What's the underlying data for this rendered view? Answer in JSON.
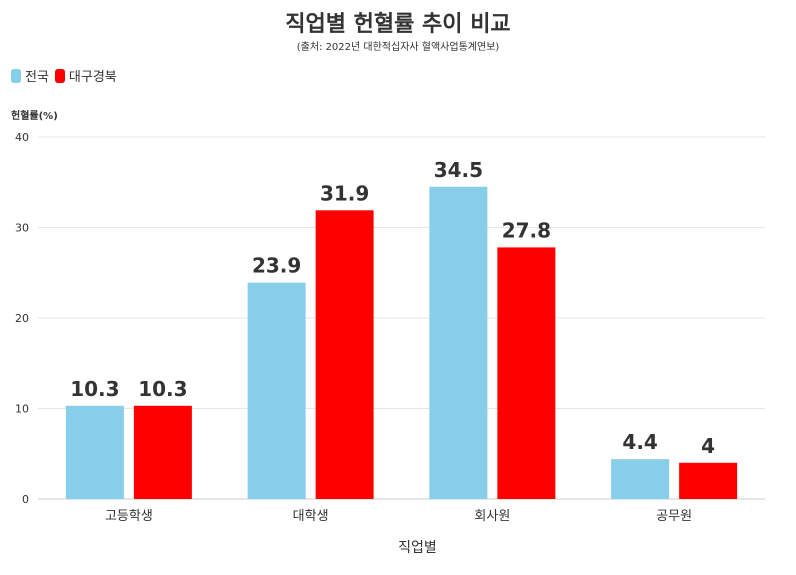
{
  "chart_data": {
    "type": "bar",
    "title": "직업별 헌혈률 추이 비교",
    "subtitle": "(출처: 2022년 대한적십자사 혈액사업통계연보)",
    "xlabel": "직업별",
    "ylabel": "헌혈률(%)",
    "categories": [
      "고등학생",
      "대학생",
      "회사원",
      "공무원"
    ],
    "series": [
      {
        "name": "전국",
        "color": "#87CEEB",
        "values": [
          10.3,
          23.9,
          34.5,
          4.4
        ]
      },
      {
        "name": "대구경북",
        "color": "#FF0000",
        "values": [
          10.3,
          31.9,
          27.8,
          4
        ]
      }
    ],
    "ylim": [
      0,
      40
    ],
    "yticks": [
      0,
      10,
      20,
      30,
      40
    ],
    "grid": true,
    "legend_position": "top-left"
  }
}
